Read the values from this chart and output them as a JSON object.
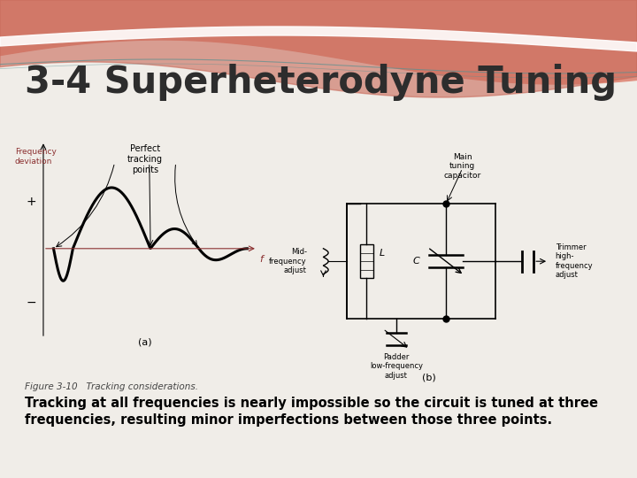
{
  "title": "3-4 Superheterodyne Tuning",
  "title_fontsize": 30,
  "title_color": "#2d2d2d",
  "bg_color": "#f0ede8",
  "fig_caption": "Figure 3-10   Tracking considerations.",
  "body_text_line1": "Tracking at all frequencies is nearly impossible so the circuit is tuned at three",
  "body_text_line2": "frequencies, resulting minor imperfections between those three points.",
  "label_a": "(a)",
  "label_b": "(b)",
  "freq_dev_label": "Frequency\ndeviation",
  "freq_dev_color": "#8b3030",
  "perfect_tracking_label": "Perfect\ntracking\npoints",
  "plus_label": "+",
  "minus_label": "−",
  "f_label": "f",
  "f_color": "#8b3030",
  "main_tuning_cap": "Main\ntuning\ncapacitor",
  "mid_freq_adjust": "Mid-\nfrequency\nadjust",
  "trimmer_high": "Trimmer\nhigh-\nfrequency\nadjust",
  "padder_low": "Padder\nlow-frequency\nadjust",
  "L_label": "L",
  "C_label": "C",
  "header_wave_color1": "#d4786a",
  "header_wave_color2": "#e8a090",
  "header_wave_color3": "#c05050",
  "teal_line_color": "#5a9090"
}
